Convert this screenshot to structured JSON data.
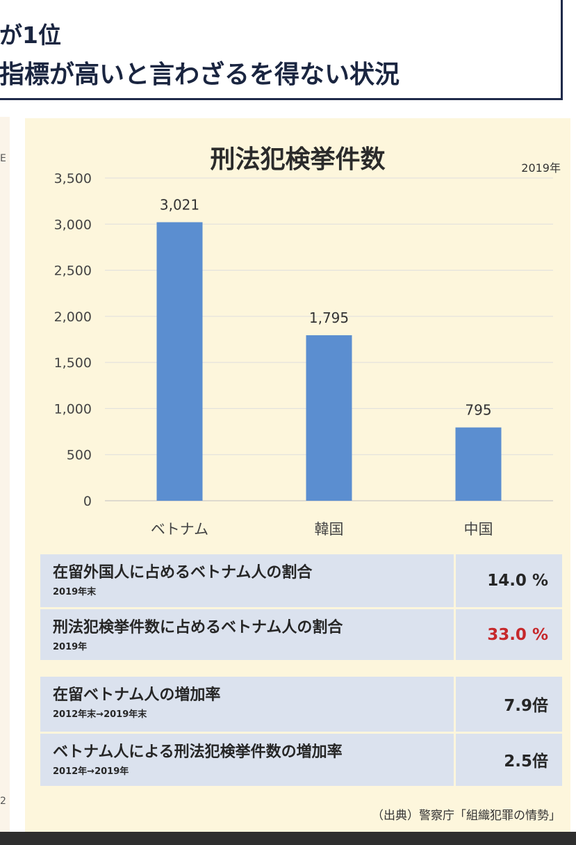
{
  "header": {
    "line1": "が1位",
    "line2": "指標が高いと言わざるを得ない状況"
  },
  "left_edge": {
    "char_top": "E",
    "char_bottom": "2"
  },
  "chart_data": {
    "type": "bar",
    "title": "刑法犯検挙件数",
    "year_note": "2019年",
    "categories": [
      "ベトナム",
      "韓国",
      "中国"
    ],
    "values": [
      3021,
      1795,
      795
    ],
    "value_labels": [
      "3,021",
      "1,795",
      "795"
    ],
    "ylim": [
      0,
      3500
    ],
    "y_ticks": [
      0,
      500,
      1000,
      1500,
      2000,
      2500,
      3000,
      3500
    ],
    "y_tick_labels": [
      "0",
      "500",
      "1,000",
      "1,500",
      "2,000",
      "2,500",
      "3,000",
      "3,500"
    ],
    "bar_color": "#5b8ed0",
    "grid": true,
    "legend": "none"
  },
  "table": {
    "rows": [
      {
        "label": "在留外国人に占めるベトナム人の割合",
        "sub": "2019年末",
        "value": "14.0 %"
      },
      {
        "label": "刑法犯検挙件数に占めるベトナム人の割合",
        "sub": "2019年",
        "value": "33.0 %"
      },
      {
        "label": "在留ベトナム人の増加率",
        "sub": "2012年末→2019年末",
        "value": "7.9倍"
      },
      {
        "label": "ベトナム人による刑法犯検挙件数の増加率",
        "sub": "2012年→2019年",
        "value": "2.5倍"
      }
    ],
    "highlight_color": "#c6282b"
  },
  "source": "（出典）警察庁「組織犯罪の情勢」"
}
